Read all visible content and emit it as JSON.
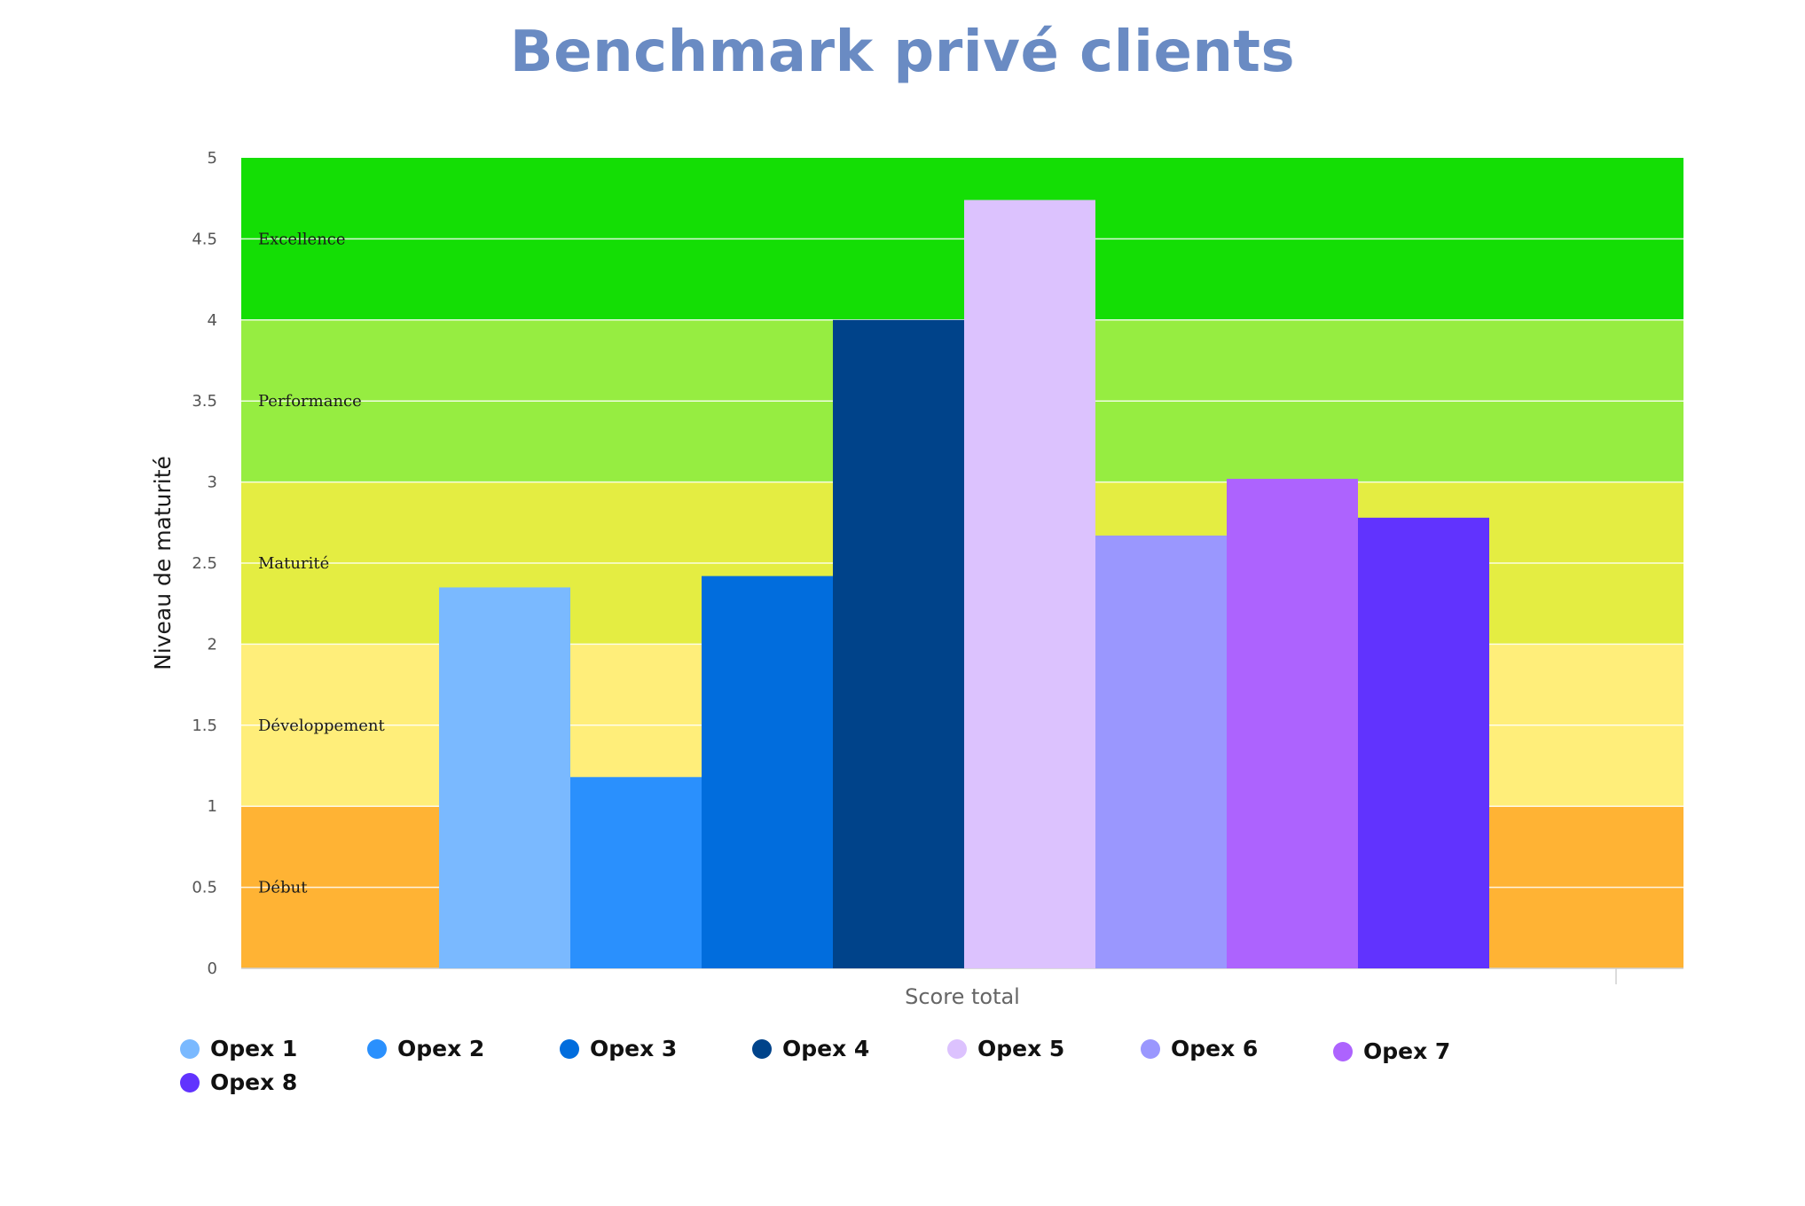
{
  "chart_data": {
    "type": "bar",
    "title": "Benchmark privé clients",
    "xlabel": "Score total",
    "ylabel": "Niveau de maturité",
    "ylim": [
      0,
      5
    ],
    "yticks": [
      "0",
      "0.5",
      "1",
      "1.5",
      "2",
      "2.5",
      "3",
      "3.5",
      "4",
      "4.5",
      "5"
    ],
    "grid": true,
    "legend_position": "bottom",
    "bands": [
      {
        "label": "Début",
        "from": 0,
        "to": 1,
        "color": "#ffb334"
      },
      {
        "label": "Développement",
        "from": 1,
        "to": 2,
        "color": "#ffee7a"
      },
      {
        "label": "Maturité",
        "from": 2,
        "to": 3,
        "color": "#e4ed42"
      },
      {
        "label": "Performance",
        "from": 3,
        "to": 4,
        "color": "#96ed41"
      },
      {
        "label": "Excellence",
        "from": 4,
        "to": 5,
        "color": "#14de05"
      }
    ],
    "series": [
      {
        "name": "Opex 1",
        "value": 2.35,
        "color": "#7ab9ff"
      },
      {
        "name": "Opex 2",
        "value": 1.18,
        "color": "#2a90fd"
      },
      {
        "name": "Opex 3",
        "value": 2.42,
        "color": "#016ddd"
      },
      {
        "name": "Opex 4",
        "value": 4.0,
        "color": "#00438a"
      },
      {
        "name": "Opex 5",
        "value": 4.74,
        "color": "#dcc2fe"
      },
      {
        "name": "Opex 6",
        "value": 2.67,
        "color": "#9a97fe"
      },
      {
        "name": "Opex 7",
        "value": 3.02,
        "color": "#ad63fe"
      },
      {
        "name": "Opex 8",
        "value": 2.78,
        "color": "#6133fe"
      }
    ]
  }
}
